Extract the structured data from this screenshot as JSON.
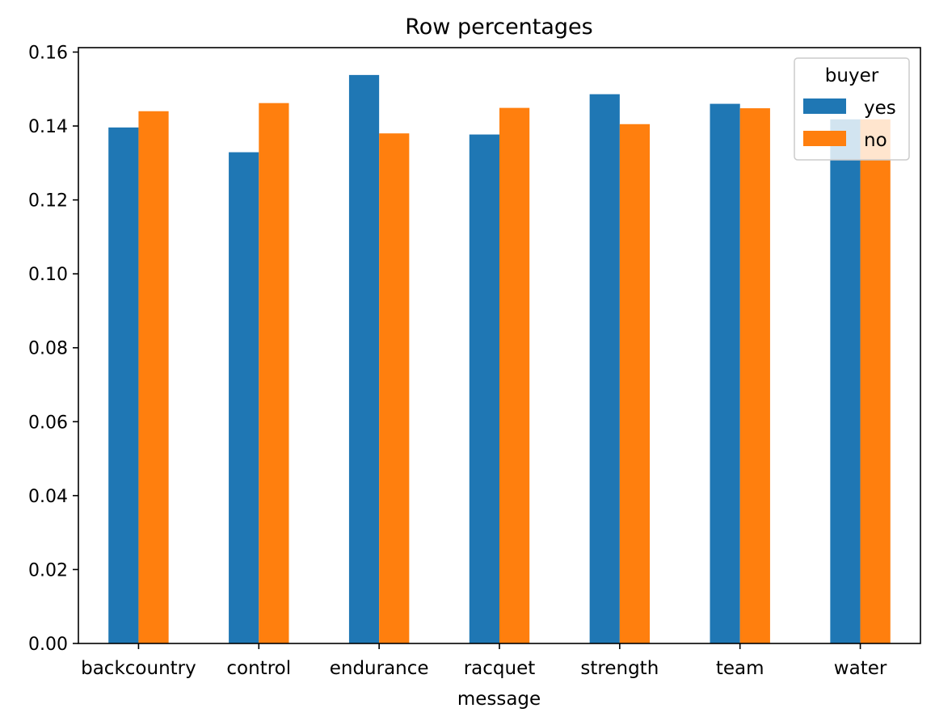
{
  "chart_data": {
    "type": "bar",
    "title": "Row percentages",
    "xlabel": "message",
    "ylabel": "",
    "categories": [
      "backcountry",
      "control",
      "endurance",
      "racquet",
      "strength",
      "team",
      "water"
    ],
    "series": [
      {
        "name": "yes",
        "color": "#1f77b4",
        "values": [
          0.1396,
          0.1329,
          0.1538,
          0.1377,
          0.1486,
          0.146,
          0.1418
        ]
      },
      {
        "name": "no",
        "color": "#ff7f0e",
        "values": [
          0.144,
          0.1462,
          0.138,
          0.1449,
          0.1405,
          0.1448,
          0.1418
        ]
      }
    ],
    "ylim": [
      0,
      0.1612
    ],
    "yticks": [
      "0.00",
      "0.02",
      "0.04",
      "0.06",
      "0.08",
      "0.10",
      "0.12",
      "0.14",
      "0.16"
    ],
    "grid": false,
    "legend": {
      "title": "buyer",
      "placement": "top-right"
    }
  }
}
